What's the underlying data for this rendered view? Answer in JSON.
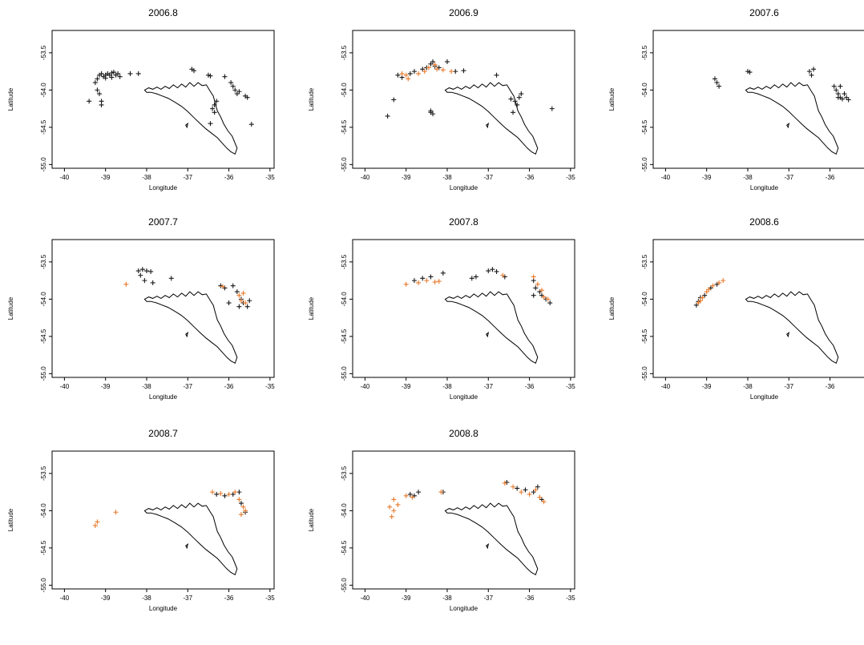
{
  "colors": {
    "black_series": "#1a1a1a",
    "orange_series": "#e8792b",
    "coast": "#000000"
  },
  "chart_data": [
    {
      "type": "scatter",
      "title": "2006.8",
      "xlabel": "Longitude",
      "ylabel": "Latitude",
      "xlim": [
        -40.3,
        -34.9
      ],
      "ylim": [
        -55.05,
        -53.2
      ],
      "xticks": [
        "-40",
        "-39",
        "-38",
        "-37",
        "-36",
        "-35"
      ],
      "yticks": [
        "-53.5",
        "-54.0",
        "-54.5",
        "-55.0"
      ],
      "marker": "+",
      "coastline": "South Georgia",
      "series": [
        {
          "color": "black",
          "points": [
            [
              -39.2,
              -53.85
            ],
            [
              -39.15,
              -53.8
            ],
            [
              -39.1,
              -53.78
            ],
            [
              -39.05,
              -53.82
            ],
            [
              -39.0,
              -53.8
            ],
            [
              -38.95,
              -53.78
            ],
            [
              -38.9,
              -53.8
            ],
            [
              -38.85,
              -53.77
            ],
            [
              -38.8,
              -53.76
            ],
            [
              -38.75,
              -53.8
            ],
            [
              -38.7,
              -53.78
            ],
            [
              -38.65,
              -53.82
            ],
            [
              -38.85,
              -53.83
            ],
            [
              -39.0,
              -53.84
            ],
            [
              -39.25,
              -53.9
            ],
            [
              -39.2,
              -54.0
            ],
            [
              -39.15,
              -54.05
            ],
            [
              -39.1,
              -54.15
            ],
            [
              -39.4,
              -54.15
            ],
            [
              -39.1,
              -54.2
            ],
            [
              -38.4,
              -53.78
            ],
            [
              -38.2,
              -53.78
            ],
            [
              -36.9,
              -53.72
            ],
            [
              -36.85,
              -53.74
            ],
            [
              -36.5,
              -53.8
            ],
            [
              -36.45,
              -53.81
            ],
            [
              -36.1,
              -53.82
            ],
            [
              -35.95,
              -53.9
            ],
            [
              -35.9,
              -53.95
            ],
            [
              -35.85,
              -54.0
            ],
            [
              -35.8,
              -54.05
            ],
            [
              -35.75,
              -54.02
            ],
            [
              -35.6,
              -54.08
            ],
            [
              -35.55,
              -54.1
            ],
            [
              -36.3,
              -54.15
            ],
            [
              -36.35,
              -54.2
            ],
            [
              -36.4,
              -54.25
            ],
            [
              -36.35,
              -54.3
            ],
            [
              -36.45,
              -54.45
            ],
            [
              -35.45,
              -54.46
            ]
          ]
        }
      ]
    },
    {
      "type": "scatter",
      "title": "2006.9",
      "xlabel": "Longitude",
      "ylabel": "Latitude",
      "xlim": [
        -40.3,
        -34.9
      ],
      "ylim": [
        -55.05,
        -53.2
      ],
      "xticks": [
        "-40",
        "-39",
        "-38",
        "-37",
        "-36",
        "-35"
      ],
      "yticks": [
        "-53.5",
        "-54.0",
        "-54.5",
        "-55.0"
      ],
      "marker": "+",
      "coastline": "South Georgia",
      "series": [
        {
          "color": "black",
          "points": [
            [
              -39.2,
              -53.8
            ],
            [
              -39.1,
              -53.83
            ],
            [
              -38.9,
              -53.78
            ],
            [
              -38.8,
              -53.75
            ],
            [
              -38.6,
              -53.72
            ],
            [
              -38.5,
              -53.7
            ],
            [
              -38.4,
              -53.65
            ],
            [
              -38.35,
              -53.62
            ],
            [
              -38.3,
              -53.68
            ],
            [
              -38.2,
              -53.7
            ],
            [
              -38.0,
              -53.62
            ],
            [
              -37.8,
              -53.75
            ],
            [
              -37.6,
              -53.74
            ],
            [
              -36.8,
              -53.8
            ],
            [
              -36.45,
              -54.12
            ],
            [
              -36.35,
              -54.15
            ],
            [
              -36.3,
              -54.2
            ],
            [
              -36.25,
              -54.1
            ],
            [
              -36.2,
              -54.05
            ],
            [
              -36.4,
              -54.3
            ],
            [
              -35.45,
              -54.25
            ],
            [
              -39.3,
              -54.13
            ],
            [
              -39.45,
              -54.35
            ],
            [
              -38.4,
              -54.3
            ],
            [
              -38.35,
              -54.32
            ],
            [
              -38.4,
              -54.28
            ]
          ]
        },
        {
          "color": "orange",
          "points": [
            [
              -39.1,
              -53.78
            ],
            [
              -39.0,
              -53.8
            ],
            [
              -38.95,
              -53.85
            ],
            [
              -38.7,
              -53.78
            ],
            [
              -38.55,
              -53.75
            ],
            [
              -38.45,
              -53.7
            ],
            [
              -38.3,
              -53.66
            ],
            [
              -38.25,
              -53.72
            ],
            [
              -38.1,
              -53.73
            ],
            [
              -37.9,
              -53.75
            ]
          ]
        }
      ]
    },
    {
      "type": "scatter",
      "title": "2007.6",
      "xlabel": "Longitude",
      "ylabel": "Latitude",
      "xlim": [
        -40.3,
        -34.9
      ],
      "ylim": [
        -55.05,
        -53.2
      ],
      "xticks": [
        "-40",
        "-39",
        "-38",
        "-37",
        "-36",
        "-35"
      ],
      "yticks": [
        "-53.5",
        "-54.0",
        "-54.5",
        "-55.0"
      ],
      "marker": "+",
      "coastline": "South Georgia",
      "series": [
        {
          "color": "black",
          "points": [
            [
              -38.8,
              -53.85
            ],
            [
              -38.75,
              -53.9
            ],
            [
              -38.7,
              -53.95
            ],
            [
              -38.0,
              -53.75
            ],
            [
              -37.95,
              -53.76
            ],
            [
              -36.5,
              -53.75
            ],
            [
              -36.45,
              -53.8
            ],
            [
              -36.4,
              -53.72
            ],
            [
              -35.9,
              -53.95
            ],
            [
              -35.85,
              -54.0
            ],
            [
              -35.8,
              -54.05
            ],
            [
              -35.75,
              -54.1
            ],
            [
              -35.7,
              -54.12
            ],
            [
              -35.65,
              -54.05
            ],
            [
              -35.6,
              -54.1
            ],
            [
              -35.55,
              -54.13
            ],
            [
              -35.75,
              -53.95
            ],
            [
              -35.8,
              -54.1
            ]
          ]
        }
      ]
    },
    {
      "type": "scatter",
      "title": "2007.7",
      "xlabel": "Longitude",
      "ylabel": "Latitude",
      "xlim": [
        -40.3,
        -34.9
      ],
      "ylim": [
        -55.05,
        -53.2
      ],
      "xticks": [
        "-40",
        "-39",
        "-38",
        "-37",
        "-36",
        "-35"
      ],
      "yticks": [
        "-53.5",
        "-54.0",
        "-54.5",
        "-55.0"
      ],
      "marker": "+",
      "coastline": "South Georgia",
      "series": [
        {
          "color": "black",
          "points": [
            [
              -38.2,
              -53.62
            ],
            [
              -38.1,
              -53.6
            ],
            [
              -38.0,
              -53.62
            ],
            [
              -37.9,
              -53.63
            ],
            [
              -38.15,
              -53.68
            ],
            [
              -38.05,
              -53.75
            ],
            [
              -37.85,
              -53.78
            ],
            [
              -37.4,
              -53.72
            ],
            [
              -36.2,
              -53.82
            ],
            [
              -36.1,
              -53.85
            ],
            [
              -35.9,
              -53.82
            ],
            [
              -35.8,
              -53.9
            ],
            [
              -35.7,
              -54.0
            ],
            [
              -35.65,
              -54.05
            ],
            [
              -35.55,
              -54.1
            ],
            [
              -35.5,
              -54.02
            ],
            [
              -35.75,
              -54.1
            ],
            [
              -36.0,
              -54.05
            ]
          ]
        },
        {
          "color": "orange",
          "points": [
            [
              -38.5,
              -53.8
            ],
            [
              -36.15,
              -53.83
            ],
            [
              -35.75,
              -53.95
            ],
            [
              -35.7,
              -54.02
            ],
            [
              -35.65,
              -53.92
            ],
            [
              -35.6,
              -54.05
            ]
          ]
        }
      ]
    },
    {
      "type": "scatter",
      "title": "2007.8",
      "xlabel": "Longitude",
      "ylabel": "Latitude",
      "xlim": [
        -40.3,
        -34.9
      ],
      "ylim": [
        -55.05,
        -53.2
      ],
      "xticks": [
        "-40",
        "-39",
        "-38",
        "-37",
        "-36",
        "-35"
      ],
      "yticks": [
        "-53.5",
        "-54.0",
        "-54.5",
        "-55.0"
      ],
      "marker": "+",
      "coastline": "South Georgia",
      "series": [
        {
          "color": "black",
          "points": [
            [
              -38.8,
              -53.75
            ],
            [
              -38.6,
              -53.72
            ],
            [
              -38.4,
              -53.7
            ],
            [
              -38.1,
              -53.65
            ],
            [
              -37.4,
              -53.72
            ],
            [
              -37.3,
              -53.7
            ],
            [
              -37.0,
              -53.62
            ],
            [
              -36.9,
              -53.6
            ],
            [
              -36.8,
              -53.63
            ],
            [
              -36.6,
              -53.7
            ],
            [
              -35.9,
              -53.75
            ],
            [
              -35.85,
              -53.85
            ],
            [
              -35.75,
              -53.9
            ],
            [
              -35.7,
              -53.95
            ],
            [
              -35.6,
              -54.0
            ],
            [
              -35.5,
              -54.05
            ],
            [
              -35.9,
              -53.95
            ]
          ]
        },
        {
          "color": "orange",
          "points": [
            [
              -39.0,
              -53.8
            ],
            [
              -38.7,
              -53.78
            ],
            [
              -38.5,
              -53.75
            ],
            [
              -38.3,
              -53.77
            ],
            [
              -38.2,
              -53.76
            ],
            [
              -36.65,
              -53.68
            ],
            [
              -35.9,
              -53.7
            ],
            [
              -35.8,
              -53.8
            ],
            [
              -35.7,
              -53.88
            ],
            [
              -35.65,
              -53.97
            ],
            [
              -35.55,
              -54.0
            ]
          ]
        }
      ]
    },
    {
      "type": "scatter",
      "title": "2008.6",
      "xlabel": "Longitude",
      "ylabel": "Latitude",
      "xlim": [
        -40.3,
        -34.9
      ],
      "ylim": [
        -55.05,
        -53.2
      ],
      "xticks": [
        "-40",
        "-39",
        "-38",
        "-37",
        "-36",
        "-35"
      ],
      "yticks": [
        "-53.5",
        "-54.0",
        "-54.5",
        "-55.0"
      ],
      "marker": "+",
      "coastline": "South Georgia",
      "series": [
        {
          "color": "black",
          "points": [
            [
              -39.25,
              -54.08
            ],
            [
              -39.2,
              -54.03
            ],
            [
              -39.15,
              -53.98
            ],
            [
              -39.05,
              -53.95
            ],
            [
              -38.9,
              -53.85
            ],
            [
              -38.75,
              -53.8
            ]
          ]
        },
        {
          "color": "orange",
          "points": [
            [
              -39.2,
              -54.05
            ],
            [
              -39.1,
              -53.98
            ],
            [
              -39.0,
              -53.9
            ],
            [
              -38.95,
              -53.87
            ],
            [
              -38.85,
              -53.82
            ],
            [
              -38.7,
              -53.78
            ],
            [
              -38.6,
              -53.75
            ],
            [
              -39.15,
              -54.02
            ]
          ]
        }
      ]
    },
    {
      "type": "scatter",
      "title": "2008.7",
      "xlabel": "Longitude",
      "ylabel": "Latitude",
      "xlim": [
        -40.3,
        -34.9
      ],
      "ylim": [
        -55.05,
        -53.2
      ],
      "xticks": [
        "-40",
        "-39",
        "-38",
        "-37",
        "-36",
        "-35"
      ],
      "yticks": [
        "-53.5",
        "-54.0",
        "-54.5",
        "-55.0"
      ],
      "marker": "+",
      "coastline": "South Georgia",
      "series": [
        {
          "color": "black",
          "points": [
            [
              -36.3,
              -53.78
            ],
            [
              -36.1,
              -53.8
            ],
            [
              -35.9,
              -53.78
            ],
            [
              -35.75,
              -53.75
            ],
            [
              -35.7,
              -53.9
            ],
            [
              -35.6,
              -54.02
            ]
          ]
        },
        {
          "color": "orange",
          "points": [
            [
              -39.2,
              -54.15
            ],
            [
              -39.25,
              -54.2
            ],
            [
              -38.75,
              -54.02
            ],
            [
              -36.4,
              -53.75
            ],
            [
              -36.2,
              -53.77
            ],
            [
              -36.0,
              -53.78
            ],
            [
              -35.85,
              -53.75
            ],
            [
              -35.75,
              -53.85
            ],
            [
              -35.65,
              -53.95
            ],
            [
              -35.6,
              -54.0
            ],
            [
              -35.7,
              -54.05
            ]
          ]
        }
      ]
    },
    {
      "type": "scatter",
      "title": "2008.8",
      "xlabel": "Longitude",
      "ylabel": "Latitude",
      "xlim": [
        -40.3,
        -34.9
      ],
      "ylim": [
        -55.05,
        -53.2
      ],
      "xticks": [
        "-40",
        "-39",
        "-38",
        "-37",
        "-36",
        "-35"
      ],
      "yticks": [
        "-53.5",
        "-54.0",
        "-54.5",
        "-55.0"
      ],
      "marker": "+",
      "coastline": "South Georgia",
      "series": [
        {
          "color": "black",
          "points": [
            [
              -38.9,
              -53.78
            ],
            [
              -38.8,
              -53.8
            ],
            [
              -38.7,
              -53.75
            ],
            [
              -38.1,
              -53.75
            ],
            [
              -36.55,
              -53.62
            ],
            [
              -36.3,
              -53.7
            ],
            [
              -36.1,
              -53.72
            ],
            [
              -35.9,
              -53.75
            ],
            [
              -35.8,
              -53.68
            ],
            [
              -35.7,
              -53.85
            ]
          ]
        },
        {
          "color": "orange",
          "points": [
            [
              -39.4,
              -53.95
            ],
            [
              -39.3,
              -54.0
            ],
            [
              -39.2,
              -53.92
            ],
            [
              -39.35,
              -54.08
            ],
            [
              -39.3,
              -53.85
            ],
            [
              -39.0,
              -53.8
            ],
            [
              -38.85,
              -53.82
            ],
            [
              -38.15,
              -53.75
            ],
            [
              -36.6,
              -53.63
            ],
            [
              -36.4,
              -53.68
            ],
            [
              -36.2,
              -53.75
            ],
            [
              -36.0,
              -53.78
            ],
            [
              -35.85,
              -53.72
            ],
            [
              -35.75,
              -53.82
            ],
            [
              -35.65,
              -53.88
            ]
          ]
        }
      ]
    }
  ]
}
